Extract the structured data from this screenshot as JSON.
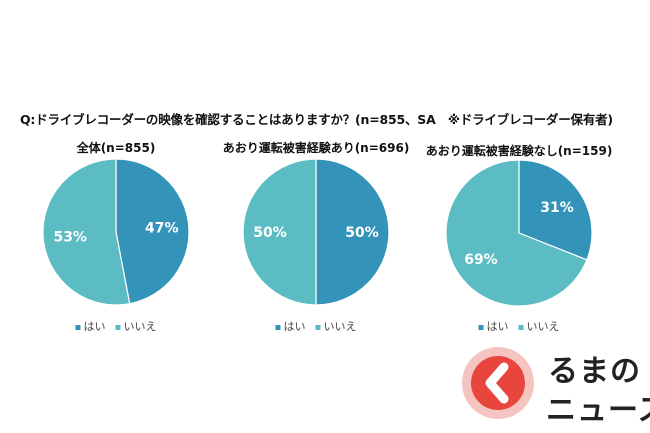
{
  "question": "Q:ドライブレコーダーの映像を確認することはありますか？(n=855、SA　※ドライブレコーダー保有者)",
  "colors": {
    "yes": "#3493b9",
    "no": "#5bbcc3"
  },
  "chart_data": [
    {
      "type": "pie",
      "title": "全体(n=855)",
      "categories": [
        "はい",
        "いいえ"
      ],
      "values": [
        47,
        53
      ],
      "labels": [
        "47%",
        "53%"
      ],
      "legend": [
        "はい",
        "いいえ"
      ]
    },
    {
      "type": "pie",
      "title": "あおり運転被害経験あり(n=696)",
      "categories": [
        "はい",
        "いいえ"
      ],
      "values": [
        50,
        50
      ],
      "labels": [
        "50%",
        "50%"
      ],
      "legend": [
        "はい",
        "いいえ"
      ]
    },
    {
      "type": "pie",
      "title": "あおり運転被害経験なし(n=159)",
      "categories": [
        "はい",
        "いいえ"
      ],
      "values": [
        31,
        69
      ],
      "labels": [
        "31%",
        "69%"
      ],
      "legend": [
        "はい",
        "いいえ"
      ]
    }
  ],
  "logo": {
    "line1": "るまの",
    "line2": "ニュース",
    "accent": "#e8453c"
  }
}
